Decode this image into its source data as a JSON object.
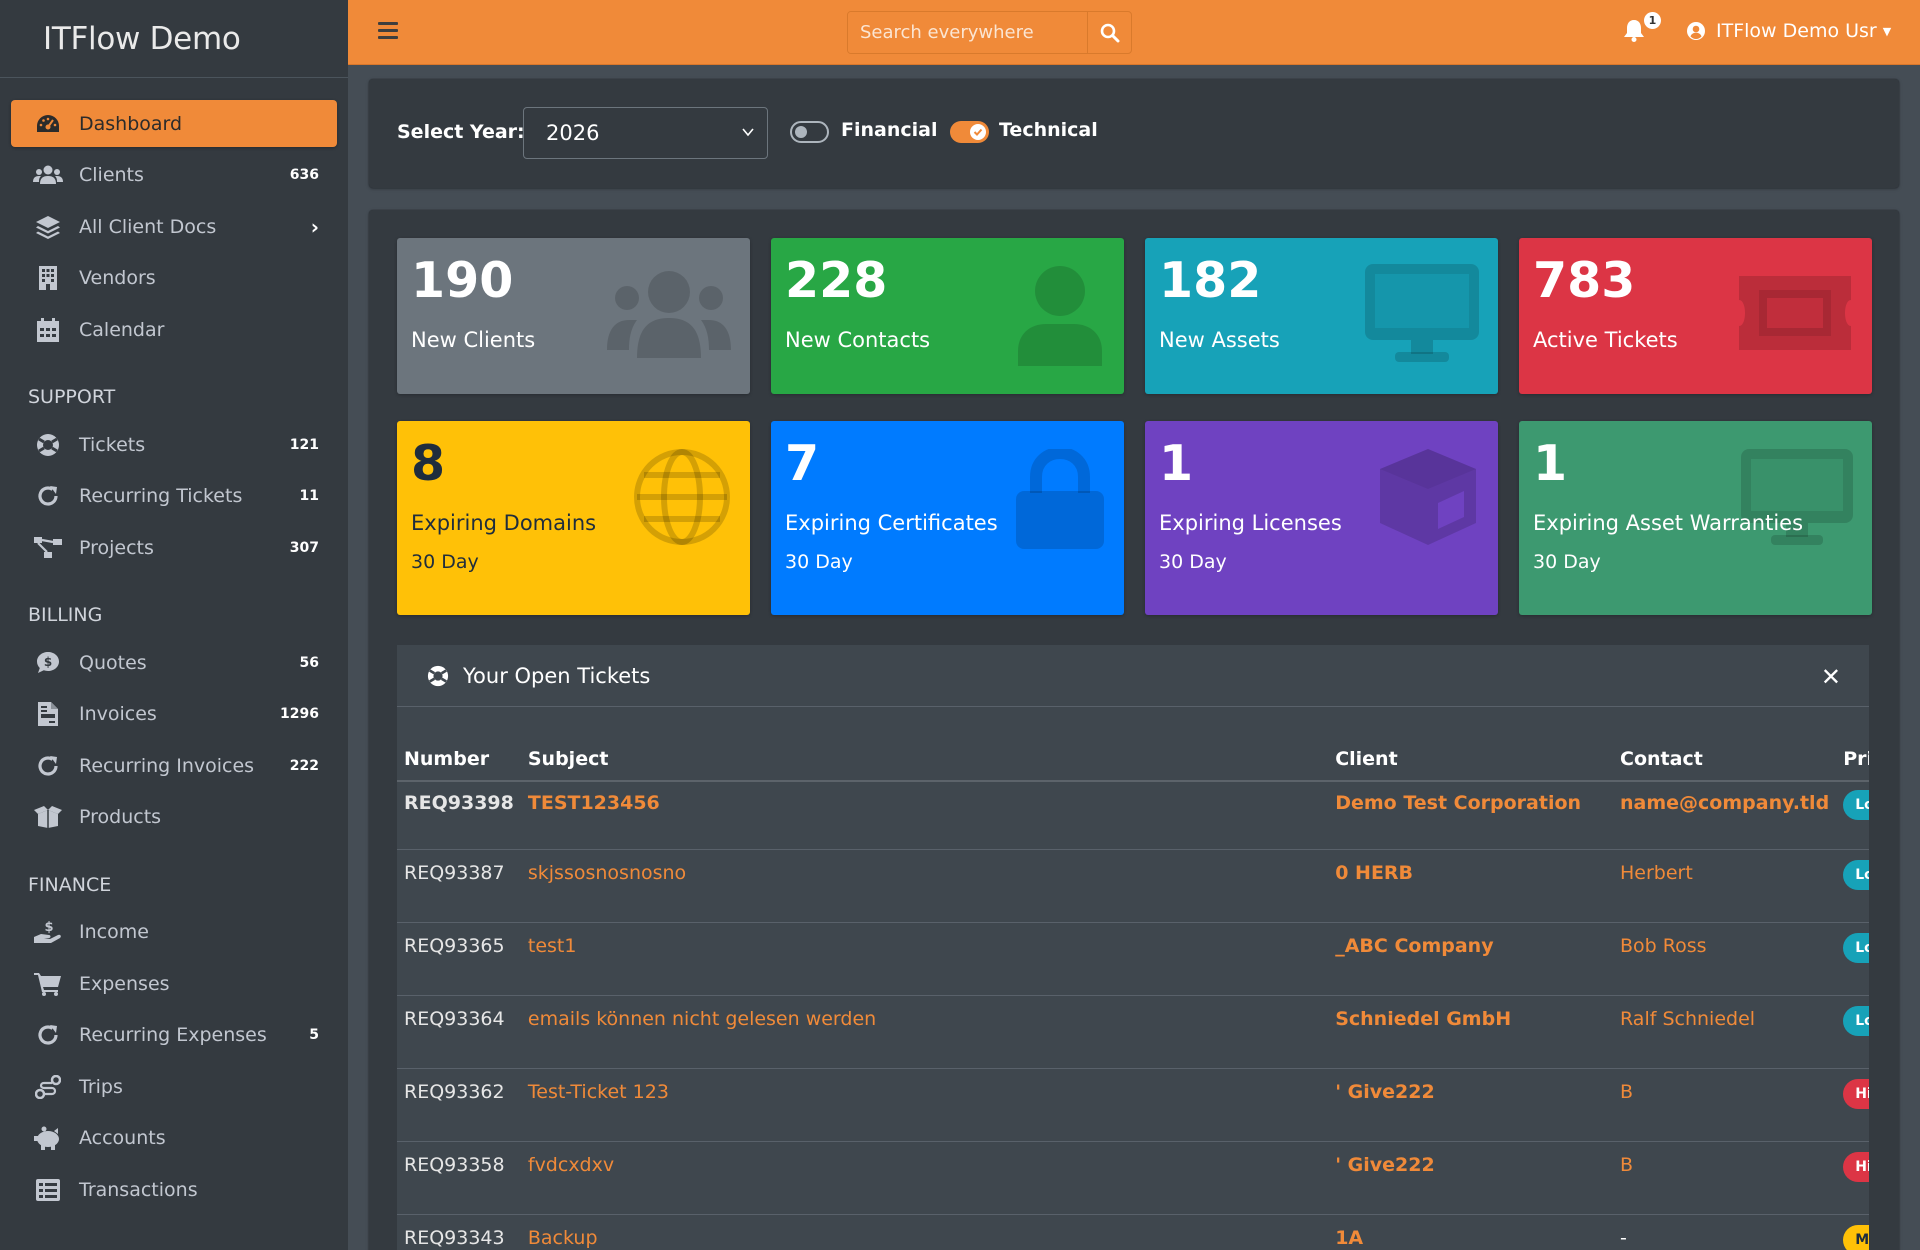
{
  "app": {
    "brand": "ITFlow Demo"
  },
  "sidebar": {
    "items": [
      {
        "label": "Dashboard",
        "icon": "tachometer-icon",
        "count": "",
        "active": true
      },
      {
        "label": "Clients",
        "icon": "users-icon",
        "count": "636"
      },
      {
        "label": "All Client Docs",
        "icon": "layers-icon",
        "count": "",
        "has_chevron": true
      },
      {
        "label": "Vendors",
        "icon": "building-icon",
        "count": ""
      },
      {
        "label": "Calendar",
        "icon": "calendar-icon",
        "count": ""
      }
    ],
    "support": {
      "header": "SUPPORT",
      "items": [
        {
          "label": "Tickets",
          "icon": "life-ring-icon",
          "count": "121"
        },
        {
          "label": "Recurring Tickets",
          "icon": "redo-icon",
          "count": "11"
        },
        {
          "label": "Projects",
          "icon": "project-diagram-icon",
          "count": "307"
        }
      ]
    },
    "billing": {
      "header": "BILLING",
      "items": [
        {
          "label": "Quotes",
          "icon": "comment-dollar-icon",
          "count": "56"
        },
        {
          "label": "Invoices",
          "icon": "file-invoice-icon",
          "count": "1296"
        },
        {
          "label": "Recurring Invoices",
          "icon": "redo-icon",
          "count": "222"
        },
        {
          "label": "Products",
          "icon": "box-open-icon",
          "count": ""
        }
      ]
    },
    "finance": {
      "header": "FINANCE",
      "items": [
        {
          "label": "Income",
          "icon": "hand-dollar-icon",
          "count": ""
        },
        {
          "label": "Expenses",
          "icon": "shopping-cart-icon",
          "count": ""
        },
        {
          "label": "Recurring Expenses",
          "icon": "redo-icon",
          "count": "5"
        },
        {
          "label": "Trips",
          "icon": "route-icon",
          "count": ""
        },
        {
          "label": "Accounts",
          "icon": "piggy-bank-icon",
          "count": ""
        },
        {
          "label": "Transactions",
          "icon": "list-icon",
          "count": ""
        }
      ]
    }
  },
  "topbar": {
    "search_placeholder": "Search everywhere",
    "notification_count": "1",
    "user_name": "ITFlow Demo Usr"
  },
  "filter": {
    "year_label": "Select Year:",
    "year_value": "2026",
    "financial_label": "Financial",
    "financial_on": false,
    "technical_label": "Technical",
    "technical_on": true
  },
  "stats": [
    {
      "value": "190",
      "label": "New Clients",
      "sub": "",
      "color": "#6c757d",
      "icon": "users-icon"
    },
    {
      "value": "228",
      "label": "New Contacts",
      "sub": "",
      "color": "#28a745",
      "icon": "user-icon"
    },
    {
      "value": "182",
      "label": "New Assets",
      "sub": "",
      "color": "#17a2b8",
      "icon": "desktop-icon"
    },
    {
      "value": "783",
      "label": "Active Tickets",
      "sub": "",
      "color": "#dc3545",
      "icon": "ticket-icon"
    },
    {
      "value": "8",
      "label": "Expiring Domains",
      "sub": "30 Day",
      "color": "#ffc107",
      "icon": "globe-icon"
    },
    {
      "value": "7",
      "label": "Expiring Certificates",
      "sub": "30 Day",
      "color": "#007bff",
      "icon": "lock-icon"
    },
    {
      "value": "1",
      "label": "Expiring Licenses",
      "sub": "30 Day",
      "color": "#6f42c1",
      "icon": "cube-icon"
    },
    {
      "value": "1",
      "label": "Expiring Asset Warranties",
      "sub": "30 Day",
      "color": "#3d9970",
      "icon": "desktop-icon"
    }
  ],
  "open_tickets": {
    "title": "Your Open Tickets",
    "columns": [
      "Number",
      "Subject",
      "Client",
      "Contact",
      "Priority"
    ],
    "rows": [
      {
        "number": "REQ93398",
        "subject": "TEST123456",
        "client": "Demo Test Corporation",
        "contact": "name@company.tld",
        "priority": "Low"
      },
      {
        "number": "REQ93387",
        "subject": "skjssosnosnosno",
        "client": "0 HERB",
        "contact": "Herbert",
        "priority": "Low"
      },
      {
        "number": "REQ93365",
        "subject": "test1",
        "client": "_ABC Company",
        "contact": "Bob Ross",
        "priority": "Low"
      },
      {
        "number": "REQ93364",
        "subject": "emails können nicht gelesen werden",
        "client": "Schniedel GmbH",
        "contact": "Ralf Schniedel",
        "priority": "Low"
      },
      {
        "number": "REQ93362",
        "subject": "Test-Ticket 123",
        "client": "' Give222",
        "contact": "B",
        "priority": "High"
      },
      {
        "number": "REQ93358",
        "subject": "fvdcxdxv",
        "client": "' Give222",
        "contact": "B",
        "priority": "High"
      },
      {
        "number": "REQ93343",
        "subject": "Backup",
        "client": "1A",
        "contact": "-",
        "priority": "Medium"
      }
    ]
  },
  "colors": {
    "accent": "#f08a39",
    "sidebar_bg": "#343a40",
    "content_bg": "#454d55"
  }
}
